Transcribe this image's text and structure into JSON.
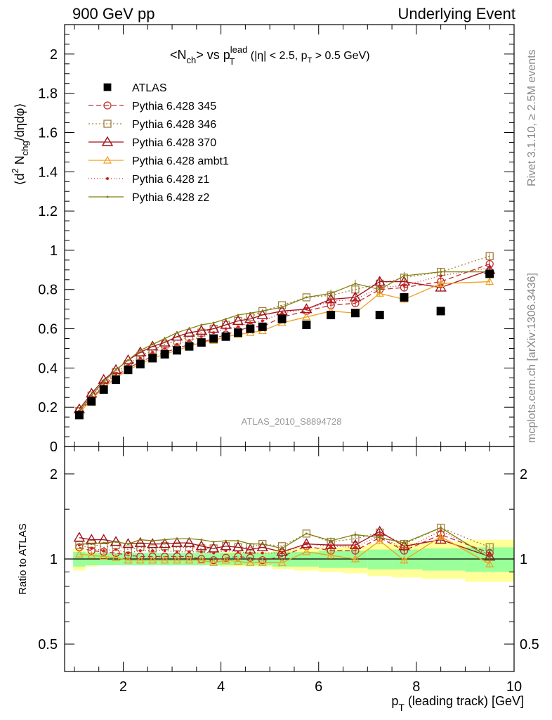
{
  "header": {
    "left": "900 GeV pp",
    "right": "Underlying Event"
  },
  "side_labels": {
    "rivet": "Rivet 3.1.10, ≥ 2.5M events",
    "mcplots": "mcplots.cern.ch [arXiv:1306.3436]"
  },
  "watermark": "ATLAS_2010_S8894728",
  "chart_data": {
    "type": "scatter",
    "title": {
      "pre": "<N",
      "sub1": "ch",
      "mid": "> vs p",
      "sub2": "T",
      "sup2": "lead",
      "cut_pre": " (|η| < 2.5, p",
      "cut_sub": "T",
      "cut_post": " > 0.5 GeV)"
    },
    "ylabel": {
      "pre": "⟨d",
      "sup": "2",
      "mid": " N",
      "sub": "chg",
      "post": "/dηdφ⟩"
    },
    "xlabel": {
      "pre": "p",
      "sub": "T",
      "post": " (leading track) [GeV]"
    },
    "ratio_ylabel": "Ratio to ATLAS",
    "xlim": [
      0.8,
      10.0
    ],
    "ylim": [
      0,
      2.15
    ],
    "ratio_ylim": [
      0.4,
      2.5
    ],
    "x_ticks": [
      "2",
      "4",
      "6",
      "8",
      "10"
    ],
    "y_ticks": [
      "0",
      "0.2",
      "0.4",
      "0.6",
      "0.8",
      "1",
      "1.2",
      "1.4",
      "1.6",
      "1.8",
      "2"
    ],
    "ratio_ticks": [
      "0.5",
      "1",
      "2"
    ],
    "x": [
      1.1,
      1.35,
      1.6,
      1.85,
      2.1,
      2.35,
      2.6,
      2.85,
      3.1,
      3.35,
      3.6,
      3.85,
      4.1,
      4.35,
      4.6,
      4.85,
      5.25,
      5.75,
      6.25,
      6.75,
      7.25,
      7.75,
      8.5,
      9.5
    ],
    "series": [
      {
        "name": "ATLAS",
        "color": "#000000",
        "marker": "filled-square",
        "values": [
          0.16,
          0.23,
          0.29,
          0.34,
          0.39,
          0.42,
          0.45,
          0.47,
          0.49,
          0.51,
          0.53,
          0.55,
          0.56,
          0.58,
          0.6,
          0.61,
          0.65,
          0.62,
          0.67,
          0.68,
          0.67,
          0.76,
          0.69,
          0.88
        ],
        "band_inner": [
          0.06,
          0.05,
          0.05,
          0.05,
          0.05,
          0.05,
          0.05,
          0.05,
          0.05,
          0.05,
          0.05,
          0.05,
          0.05,
          0.05,
          0.05,
          0.05,
          0.06,
          0.06,
          0.07,
          0.07,
          0.08,
          0.08,
          0.09,
          0.1
        ],
        "band_outer": [
          0.09,
          0.06,
          0.05,
          0.05,
          0.05,
          0.05,
          0.05,
          0.05,
          0.05,
          0.05,
          0.05,
          0.05,
          0.06,
          0.06,
          0.06,
          0.06,
          0.08,
          0.09,
          0.1,
          0.11,
          0.13,
          0.14,
          0.15,
          0.17
        ]
      },
      {
        "name": "Pythia 6.428 345",
        "color": "#c03030",
        "marker": "open-circle",
        "dash": "7,4",
        "values": [
          0.18,
          0.24,
          0.31,
          0.36,
          0.4,
          0.43,
          0.46,
          0.48,
          0.5,
          0.52,
          0.53,
          0.55,
          0.57,
          0.59,
          0.61,
          0.61,
          0.66,
          0.69,
          0.72,
          0.73,
          0.8,
          0.81,
          0.84,
          0.93
        ],
        "ratio": [
          1.1,
          1.07,
          1.06,
          1.05,
          1.03,
          1.02,
          1.02,
          1.02,
          1.02,
          1.02,
          1.0,
          0.99,
          1.01,
          1.02,
          1.01,
          0.99,
          1.02,
          1.11,
          1.07,
          1.07,
          1.19,
          1.07,
          1.22,
          1.05
        ]
      },
      {
        "name": "Pythia 6.428 346",
        "color": "#a08040",
        "marker": "open-square",
        "dash": "2,3",
        "values": [
          0.18,
          0.26,
          0.32,
          0.38,
          0.42,
          0.46,
          0.49,
          0.52,
          0.54,
          0.56,
          0.58,
          0.6,
          0.62,
          0.64,
          0.66,
          0.69,
          0.72,
          0.76,
          0.77,
          0.8,
          0.83,
          0.86,
          0.89,
          0.97
        ],
        "ratio": [
          1.12,
          1.13,
          1.1,
          1.12,
          1.08,
          1.1,
          1.09,
          1.11,
          1.1,
          1.1,
          1.09,
          1.09,
          1.11,
          1.1,
          1.1,
          1.13,
          1.11,
          1.23,
          1.15,
          1.18,
          1.24,
          1.13,
          1.29,
          1.1
        ]
      },
      {
        "name": "Pythia 6.428 370",
        "color": "#a0101f",
        "marker": "open-triangle",
        "dash": "",
        "values": [
          0.19,
          0.27,
          0.34,
          0.39,
          0.44,
          0.48,
          0.51,
          0.53,
          0.56,
          0.58,
          0.59,
          0.6,
          0.62,
          0.64,
          0.65,
          0.67,
          0.69,
          0.7,
          0.75,
          0.76,
          0.84,
          0.84,
          0.81,
          0.9
        ],
        "ratio": [
          1.19,
          1.17,
          1.17,
          1.15,
          1.13,
          1.14,
          1.13,
          1.13,
          1.14,
          1.14,
          1.11,
          1.09,
          1.11,
          1.1,
          1.08,
          1.1,
          1.06,
          1.13,
          1.12,
          1.12,
          1.25,
          1.11,
          1.17,
          1.02
        ]
      },
      {
        "name": "Pythia 6.428 ambt1",
        "color": "#f0a020",
        "marker": "open-triangle-small",
        "dash": "",
        "values": [
          0.17,
          0.24,
          0.3,
          0.35,
          0.39,
          0.42,
          0.45,
          0.47,
          0.49,
          0.51,
          0.53,
          0.54,
          0.56,
          0.57,
          0.58,
          0.59,
          0.63,
          0.66,
          0.69,
          0.68,
          0.78,
          0.75,
          0.83,
          0.84
        ],
        "ratio": [
          1.04,
          1.03,
          1.02,
          1.01,
          0.99,
          0.99,
          0.99,
          0.99,
          0.99,
          0.99,
          0.99,
          0.97,
          0.99,
          0.98,
          0.97,
          0.97,
          0.97,
          1.06,
          1.03,
          1.0,
          1.16,
          0.99,
          1.2,
          0.96
        ]
      },
      {
        "name": "Pythia 6.428 z1",
        "color": "#d02020",
        "marker": "dot",
        "dash": "1,3",
        "values": [
          0.18,
          0.25,
          0.31,
          0.37,
          0.41,
          0.45,
          0.48,
          0.5,
          0.52,
          0.54,
          0.56,
          0.58,
          0.6,
          0.61,
          0.63,
          0.64,
          0.68,
          0.7,
          0.74,
          0.75,
          0.81,
          0.82,
          0.87,
          0.91
        ],
        "ratio": [
          1.12,
          1.09,
          1.07,
          1.08,
          1.05,
          1.07,
          1.07,
          1.07,
          1.06,
          1.06,
          1.06,
          1.05,
          1.07,
          1.06,
          1.05,
          1.05,
          1.05,
          1.13,
          1.11,
          1.1,
          1.21,
          1.08,
          1.26,
          1.03
        ]
      },
      {
        "name": "Pythia 6.428 z2",
        "color": "#808010",
        "marker": "small-dot",
        "dash": "",
        "values": [
          0.18,
          0.26,
          0.33,
          0.39,
          0.44,
          0.49,
          0.52,
          0.55,
          0.58,
          0.6,
          0.62,
          0.63,
          0.65,
          0.67,
          0.68,
          0.69,
          0.71,
          0.76,
          0.78,
          0.83,
          0.8,
          0.87,
          0.89,
          0.89
        ],
        "ratio": [
          1.13,
          1.13,
          1.14,
          1.15,
          1.13,
          1.17,
          1.16,
          1.17,
          1.18,
          1.18,
          1.17,
          1.15,
          1.16,
          1.16,
          1.13,
          1.13,
          1.09,
          1.23,
          1.16,
          1.22,
          1.19,
          1.14,
          1.29,
          1.01
        ]
      }
    ]
  }
}
